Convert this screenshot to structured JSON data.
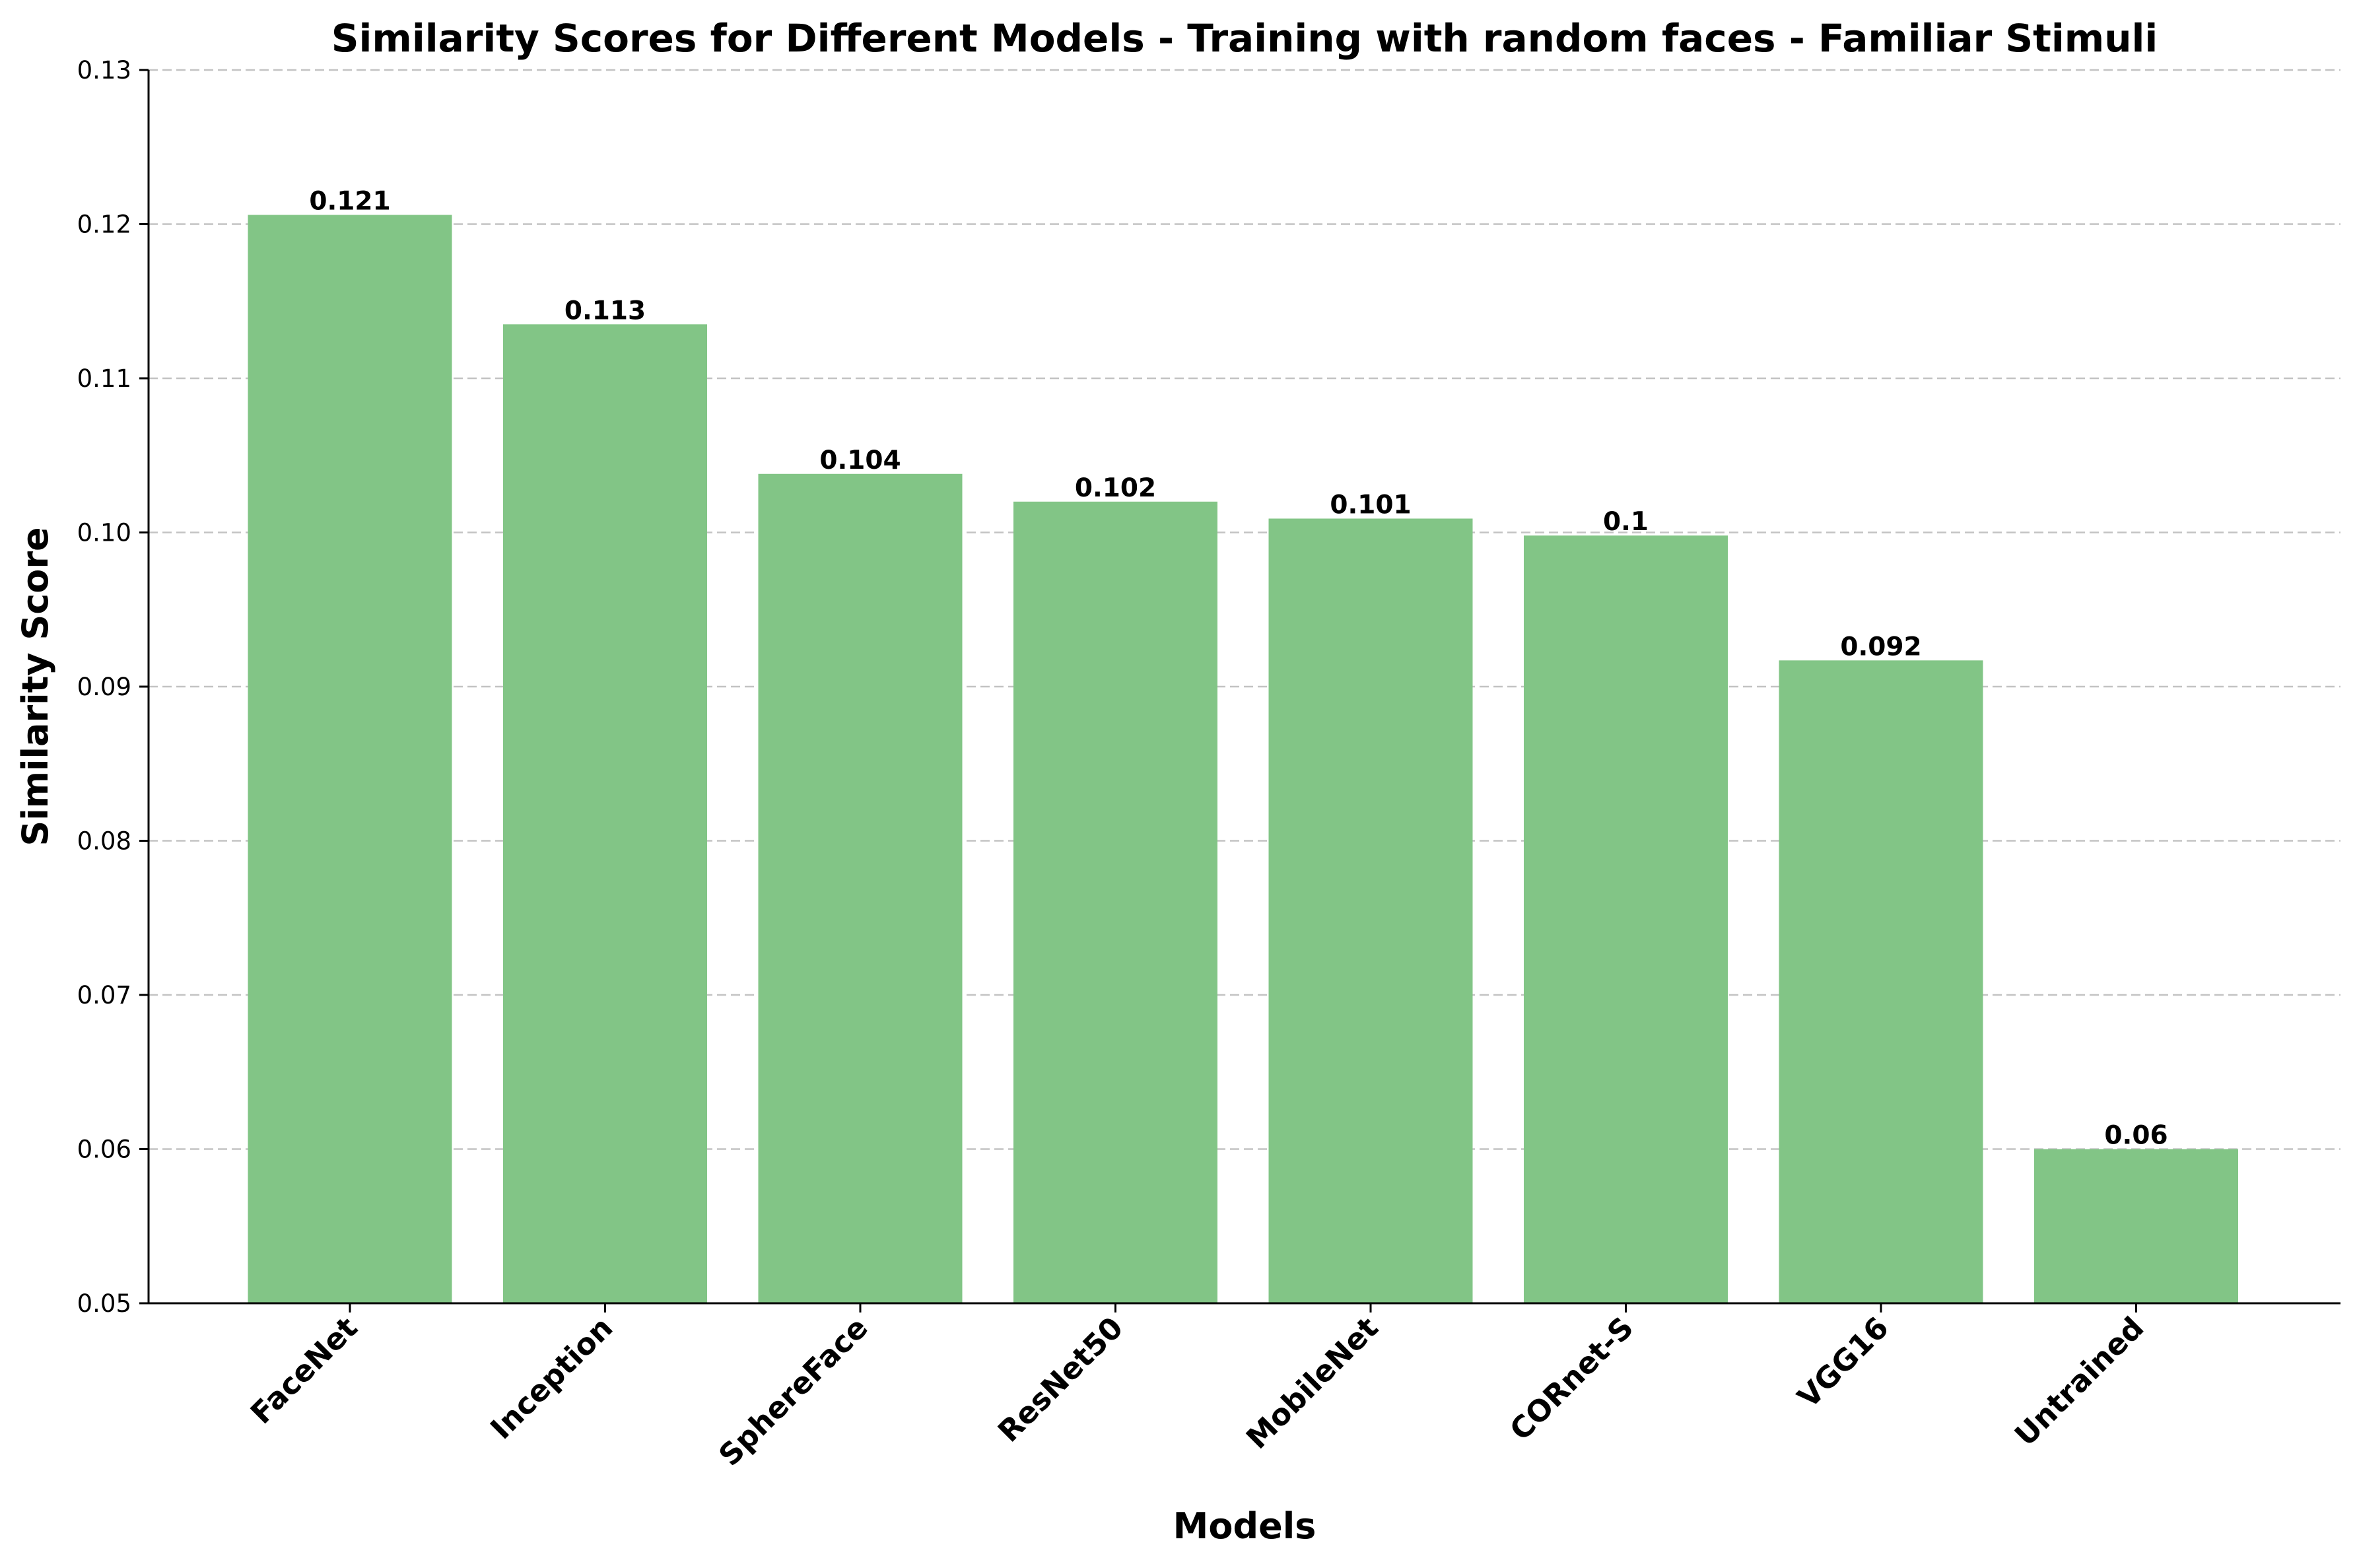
{
  "chart_data": {
    "type": "bar",
    "title": "Similarity Scores for Different Models - Training with random faces - Familiar Stimuli",
    "xlabel": "Models",
    "ylabel": "Similarity Score",
    "categories": [
      "FaceNet",
      "Inception",
      "SphereFace",
      "ResNet50",
      "MobileNet",
      "CORnet-S",
      "VGG16",
      "Untrained"
    ],
    "values": [
      0.1206,
      0.1135,
      0.1038,
      0.102,
      0.1009,
      0.0998,
      0.0917,
      0.06
    ],
    "data_labels": [
      "0.121",
      "0.113",
      "0.104",
      "0.102",
      "0.101",
      "0.1",
      "0.092",
      "0.06"
    ],
    "ylim": [
      0.05,
      0.13
    ],
    "yticks": [
      "0.05",
      "0.06",
      "0.07",
      "0.08",
      "0.09",
      "0.10",
      "0.11",
      "0.12",
      "0.13"
    ],
    "grid": "y-dashed",
    "bar_color": "#82c586"
  }
}
